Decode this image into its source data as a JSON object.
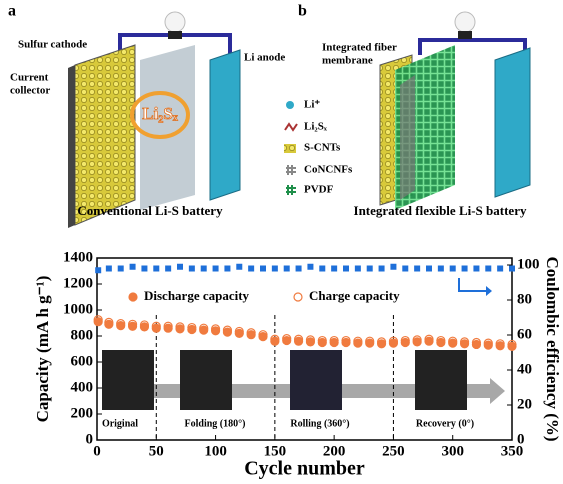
{
  "panel_a": {
    "label": "a",
    "sulfur_cathode": "Sulfur cathode",
    "current_collector": [
      "Current",
      "collector"
    ],
    "li_anode": "Li anode",
    "center": "Li₂Sₓ",
    "caption": "Conventional Li-S battery"
  },
  "panel_b": {
    "label": "b",
    "membrane": [
      "Integrated fiber",
      "membrane"
    ],
    "caption": "Integrated flexible Li-S battery"
  },
  "legend": [
    "Li⁺",
    "Li₂Sₓ",
    "S-CNTs",
    "CoNCNFs",
    "PVDF"
  ],
  "chart_data": {
    "type": "scatter",
    "xlabel": "Cycle number",
    "ylabel": "Capacity (mA h g⁻¹)",
    "y2label": "Coulombic efficiency (%)",
    "x": [
      1,
      10,
      20,
      30,
      40,
      50,
      60,
      70,
      80,
      90,
      100,
      110,
      120,
      130,
      140,
      150,
      160,
      170,
      180,
      190,
      200,
      210,
      220,
      230,
      240,
      250,
      260,
      270,
      280,
      290,
      300,
      310,
      320,
      330,
      340,
      350
    ],
    "series": [
      {
        "name": "Discharge capacity",
        "color": "#f07b3f",
        "filled": true,
        "values": [
          910,
          890,
          880,
          875,
          870,
          860,
          860,
          855,
          850,
          845,
          840,
          830,
          820,
          810,
          795,
          760,
          765,
          760,
          755,
          750,
          750,
          750,
          745,
          745,
          740,
          745,
          750,
          755,
          760,
          750,
          745,
          740,
          735,
          730,
          725,
          720
        ]
      },
      {
        "name": "Charge capacity",
        "color": "#f07b3f",
        "filled": false,
        "values": [
          925,
          905,
          895,
          890,
          885,
          875,
          875,
          870,
          865,
          860,
          855,
          845,
          835,
          825,
          810,
          775,
          780,
          775,
          770,
          765,
          765,
          765,
          760,
          760,
          755,
          760,
          765,
          770,
          775,
          765,
          760,
          755,
          750,
          745,
          740,
          735
        ]
      },
      {
        "color": "#1e6fd9",
        "axis": "y2",
        "values": [
          97,
          98,
          98,
          99,
          98,
          98,
          98,
          99,
          98,
          98,
          98,
          98,
          99,
          98,
          98,
          98,
          98,
          98,
          99,
          98,
          98,
          98,
          98,
          98,
          98,
          99,
          98,
          98,
          98,
          98,
          98,
          98,
          98,
          98,
          98,
          98
        ]
      }
    ],
    "xlim": [
      0,
      350
    ],
    "xticks": [
      0,
      50,
      100,
      150,
      200,
      250,
      300,
      350
    ],
    "ylim": [
      0,
      1400
    ],
    "yticks": [
      0,
      200,
      400,
      600,
      800,
      1000,
      1200,
      1400
    ],
    "y2lim": [
      0,
      104
    ],
    "y2ticks": [
      0,
      20,
      40,
      60,
      80,
      100
    ],
    "dividers": [
      50,
      150,
      250
    ],
    "annotations": [
      "Original",
      "Folding (180°)",
      "Rolling (360°)",
      "Recovery (0°)"
    ]
  }
}
